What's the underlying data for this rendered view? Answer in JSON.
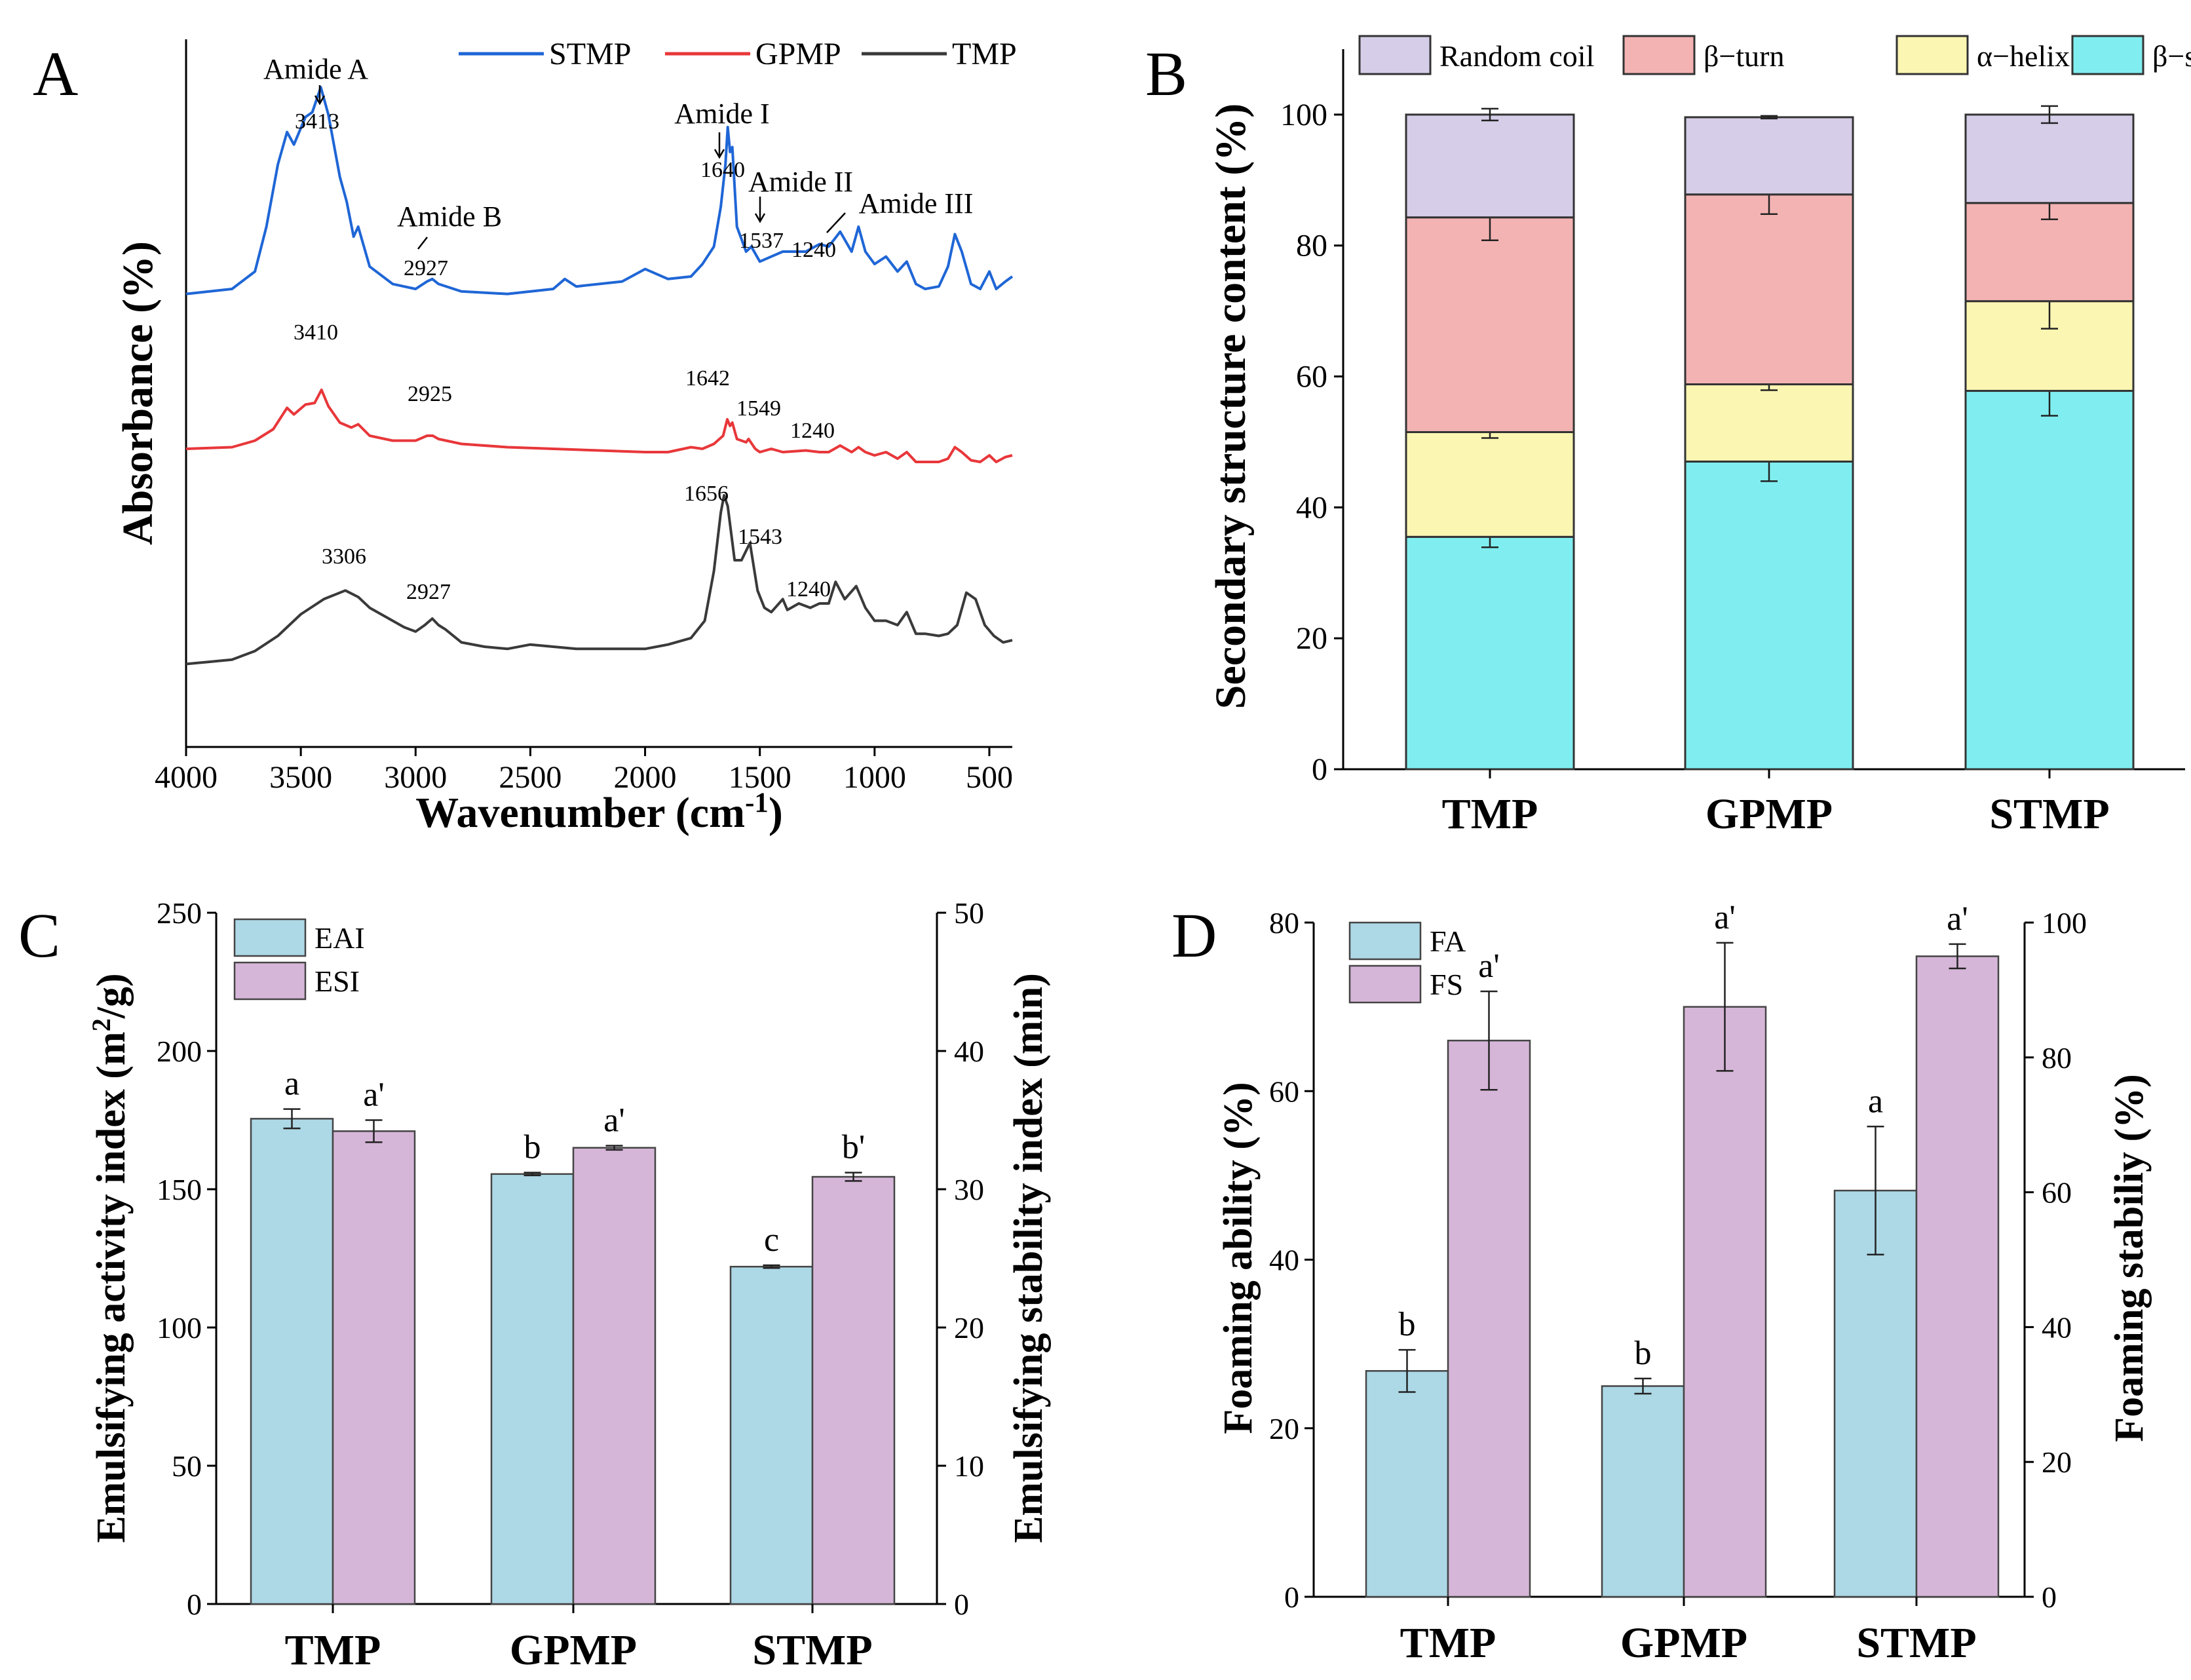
{
  "colors": {
    "stmp": "#1f66d6",
    "gpmp": "#e8373a",
    "tmp": "#3a3a3a",
    "random_coil": "#d6cde8",
    "beta_turn": "#f4b3b3",
    "alpha_helix": "#fbf6b2",
    "beta_sheet": "#80eef0",
    "eai": "#add8e6",
    "esi": "#d6b6d8",
    "fa": "#add8e6",
    "fs": "#d6b6d8"
  },
  "chart_data": [
    {
      "panel": "A",
      "type": "line",
      "xlabel": "Wavenumber (cm",
      "xlabel_sup": "-1",
      "xlabel_close": ")",
      "ylabel": "Absorbance (%)",
      "xlim": [
        4000,
        400
      ],
      "xticks": [
        "4000",
        "3500",
        "3000",
        "2500",
        "2000",
        "1500",
        "1000",
        "500"
      ],
      "legend": [
        "STMP",
        "GPMP",
        "TMP"
      ],
      "series": [
        {
          "name": "STMP",
          "points": [
            [
              4000,
              0.03
            ],
            [
              3800,
              0.05
            ],
            [
              3700,
              0.12
            ],
            [
              3650,
              0.3
            ],
            [
              3600,
              0.55
            ],
            [
              3560,
              0.68
            ],
            [
              3530,
              0.63
            ],
            [
              3480,
              0.74
            ],
            [
              3450,
              0.76
            ],
            [
              3413,
              0.86
            ],
            [
              3380,
              0.75
            ],
            [
              3330,
              0.5
            ],
            [
              3300,
              0.4
            ],
            [
              3270,
              0.26
            ],
            [
              3250,
              0.3
            ],
            [
              3200,
              0.14
            ],
            [
              3100,
              0.07
            ],
            [
              3000,
              0.05
            ],
            [
              2950,
              0.08
            ],
            [
              2927,
              0.09
            ],
            [
              2900,
              0.07
            ],
            [
              2800,
              0.04
            ],
            [
              2600,
              0.03
            ],
            [
              2400,
              0.05
            ],
            [
              2350,
              0.09
            ],
            [
              2300,
              0.06
            ],
            [
              2100,
              0.08
            ],
            [
              2000,
              0.13
            ],
            [
              1900,
              0.09
            ],
            [
              1800,
              0.1
            ],
            [
              1750,
              0.15
            ],
            [
              1700,
              0.22
            ],
            [
              1670,
              0.38
            ],
            [
              1650,
              0.55
            ],
            [
              1640,
              0.7
            ],
            [
              1630,
              0.6
            ],
            [
              1620,
              0.62
            ],
            [
              1600,
              0.3
            ],
            [
              1560,
              0.2
            ],
            [
              1537,
              0.22
            ],
            [
              1500,
              0.16
            ],
            [
              1450,
              0.18
            ],
            [
              1400,
              0.2
            ],
            [
              1300,
              0.2
            ],
            [
              1240,
              0.23
            ],
            [
              1200,
              0.22
            ],
            [
              1150,
              0.28
            ],
            [
              1100,
              0.2
            ],
            [
              1070,
              0.3
            ],
            [
              1040,
              0.2
            ],
            [
              1000,
              0.15
            ],
            [
              950,
              0.18
            ],
            [
              900,
              0.12
            ],
            [
              860,
              0.16
            ],
            [
              820,
              0.07
            ],
            [
              780,
              0.05
            ],
            [
              720,
              0.06
            ],
            [
              680,
              0.14
            ],
            [
              650,
              0.27
            ],
            [
              620,
              0.2
            ],
            [
              580,
              0.07
            ],
            [
              540,
              0.05
            ],
            [
              500,
              0.12
            ],
            [
              470,
              0.05
            ],
            [
              430,
              0.08
            ],
            [
              400,
              0.1
            ]
          ]
        },
        {
          "name": "GPMP",
          "points": [
            [
              4000,
              0.02
            ],
            [
              3800,
              0.03
            ],
            [
              3700,
              0.07
            ],
            [
              3620,
              0.14
            ],
            [
              3560,
              0.27
            ],
            [
              3530,
              0.23
            ],
            [
              3480,
              0.29
            ],
            [
              3440,
              0.3
            ],
            [
              3410,
              0.38
            ],
            [
              3380,
              0.28
            ],
            [
              3330,
              0.18
            ],
            [
              3280,
              0.15
            ],
            [
              3250,
              0.17
            ],
            [
              3200,
              0.1
            ],
            [
              3100,
              0.07
            ],
            [
              3000,
              0.07
            ],
            [
              2950,
              0.1
            ],
            [
              2925,
              0.1
            ],
            [
              2900,
              0.08
            ],
            [
              2800,
              0.05
            ],
            [
              2600,
              0.03
            ],
            [
              2400,
              0.02
            ],
            [
              2200,
              0.01
            ],
            [
              2000,
              0.0
            ],
            [
              1900,
              0.0
            ],
            [
              1800,
              0.03
            ],
            [
              1750,
              0.02
            ],
            [
              1700,
              0.05
            ],
            [
              1660,
              0.1
            ],
            [
              1642,
              0.2
            ],
            [
              1630,
              0.16
            ],
            [
              1620,
              0.18
            ],
            [
              1600,
              0.08
            ],
            [
              1560,
              0.06
            ],
            [
              1549,
              0.08
            ],
            [
              1520,
              0.02
            ],
            [
              1500,
              0.0
            ],
            [
              1450,
              0.02
            ],
            [
              1400,
              0.0
            ],
            [
              1300,
              0.01
            ],
            [
              1240,
              0.0
            ],
            [
              1200,
              0.0
            ],
            [
              1150,
              0.04
            ],
            [
              1100,
              0.0
            ],
            [
              1070,
              0.03
            ],
            [
              1040,
              0.0
            ],
            [
              1000,
              -0.02
            ],
            [
              950,
              0.0
            ],
            [
              900,
              -0.04
            ],
            [
              860,
              0.0
            ],
            [
              820,
              -0.06
            ],
            [
              780,
              -0.06
            ],
            [
              720,
              -0.06
            ],
            [
              680,
              -0.04
            ],
            [
              650,
              0.03
            ],
            [
              620,
              0.0
            ],
            [
              580,
              -0.05
            ],
            [
              540,
              -0.06
            ],
            [
              500,
              -0.02
            ],
            [
              470,
              -0.06
            ],
            [
              430,
              -0.03
            ],
            [
              400,
              -0.02
            ]
          ]
        },
        {
          "name": "TMP",
          "points": [
            [
              4000,
              0.02
            ],
            [
              3900,
              0.03
            ],
            [
              3800,
              0.04
            ],
            [
              3700,
              0.08
            ],
            [
              3600,
              0.15
            ],
            [
              3500,
              0.25
            ],
            [
              3400,
              0.32
            ],
            [
              3306,
              0.36
            ],
            [
              3250,
              0.33
            ],
            [
              3200,
              0.28
            ],
            [
              3100,
              0.22
            ],
            [
              3050,
              0.19
            ],
            [
              3000,
              0.17
            ],
            [
              2960,
              0.2
            ],
            [
              2927,
              0.23
            ],
            [
              2900,
              0.2
            ],
            [
              2870,
              0.18
            ],
            [
              2800,
              0.12
            ],
            [
              2700,
              0.1
            ],
            [
              2600,
              0.09
            ],
            [
              2500,
              0.11
            ],
            [
              2400,
              0.1
            ],
            [
              2300,
              0.09
            ],
            [
              2200,
              0.09
            ],
            [
              2100,
              0.09
            ],
            [
              2000,
              0.09
            ],
            [
              1900,
              0.11
            ],
            [
              1800,
              0.14
            ],
            [
              1740,
              0.22
            ],
            [
              1700,
              0.45
            ],
            [
              1670,
              0.72
            ],
            [
              1656,
              0.8
            ],
            [
              1640,
              0.75
            ],
            [
              1610,
              0.5
            ],
            [
              1580,
              0.5
            ],
            [
              1543,
              0.58
            ],
            [
              1510,
              0.36
            ],
            [
              1480,
              0.28
            ],
            [
              1450,
              0.26
            ],
            [
              1400,
              0.32
            ],
            [
              1380,
              0.27
            ],
            [
              1330,
              0.3
            ],
            [
              1280,
              0.28
            ],
            [
              1240,
              0.3
            ],
            [
              1200,
              0.3
            ],
            [
              1170,
              0.4
            ],
            [
              1130,
              0.32
            ],
            [
              1080,
              0.38
            ],
            [
              1040,
              0.28
            ],
            [
              1000,
              0.22
            ],
            [
              950,
              0.22
            ],
            [
              900,
              0.2
            ],
            [
              860,
              0.26
            ],
            [
              820,
              0.16
            ],
            [
              780,
              0.16
            ],
            [
              720,
              0.15
            ],
            [
              680,
              0.16
            ],
            [
              640,
              0.2
            ],
            [
              600,
              0.35
            ],
            [
              560,
              0.32
            ],
            [
              520,
              0.2
            ],
            [
              480,
              0.15
            ],
            [
              440,
              0.12
            ],
            [
              400,
              0.13
            ]
          ]
        }
      ],
      "annotations": {
        "stmp": [
          {
            "label": "Amide A",
            "value": "3413"
          },
          {
            "label": "Amide B",
            "value": "2927"
          },
          {
            "label": "Amide I",
            "value": "1640"
          },
          {
            "label": "Amide II",
            "value": "1537"
          },
          {
            "label": "Amide III",
            "value": "1240"
          }
        ],
        "gpmp": [
          "3410",
          "2925",
          "1642",
          "1549",
          "1240"
        ],
        "tmp": [
          "3306",
          "2927",
          "1656",
          "1543",
          "1240"
        ]
      },
      "panel_label": "A"
    },
    {
      "panel": "B",
      "type": "bar",
      "stacked": true,
      "categories": [
        "TMP",
        "GPMP",
        "STMP"
      ],
      "ylabel": "Secondary structure content (%)",
      "ylim": [
        0,
        110
      ],
      "yticks": [
        "0",
        "20",
        "40",
        "60",
        "80",
        "100"
      ],
      "legend": [
        "Random coil",
        "β−turn",
        "α−helix",
        "β−sheet"
      ],
      "series": [
        {
          "name": "β−sheet",
          "values": [
            35.5,
            47.0,
            57.8
          ],
          "errors": [
            1.6,
            3.0,
            3.8
          ]
        },
        {
          "name": "α−helix",
          "values": [
            16.0,
            11.8,
            13.7
          ],
          "errors": [
            0.9,
            0.9,
            4.2
          ]
        },
        {
          "name": "β−turn",
          "values": [
            32.8,
            29.0,
            15.0
          ],
          "errors": [
            3.5,
            3.0,
            2.5
          ]
        },
        {
          "name": "Random coil",
          "values": [
            15.7,
            11.8,
            13.5
          ],
          "errors": [
            0.9,
            0.2,
            1.3
          ]
        }
      ],
      "panel_label": "B"
    },
    {
      "panel": "C",
      "type": "bar",
      "categories": [
        "TMP",
        "GPMP",
        "STMP"
      ],
      "ylabel_left": "Emulsifying activity index (m",
      "ylabel_left_sup": "2",
      "ylabel_left_close": "/g)",
      "ylabel_right": "Emulsifying stability index (min)",
      "ylim_left": [
        0,
        250
      ],
      "ylim_right": [
        0,
        50
      ],
      "yticks_left": [
        "0",
        "50",
        "100",
        "150",
        "200",
        "250"
      ],
      "yticks_right": [
        "0",
        "10",
        "20",
        "30",
        "40",
        "50"
      ],
      "legend": [
        "EAI",
        "ESI"
      ],
      "series": [
        {
          "name": "EAI",
          "axis": "left",
          "values": [
            175.5,
            155.5,
            122.0
          ],
          "errors": [
            3.5,
            0.5,
            0.5
          ],
          "letters": [
            "a",
            "b",
            "c"
          ]
        },
        {
          "name": "ESI",
          "axis": "right",
          "values": [
            34.2,
            33.0,
            30.9
          ],
          "errors": [
            0.8,
            0.15,
            0.3
          ],
          "letters": [
            "a'",
            "a'",
            "b'"
          ]
        }
      ],
      "panel_label": "C"
    },
    {
      "panel": "D",
      "type": "bar",
      "categories": [
        "TMP",
        "GPMP",
        "STMP"
      ],
      "ylabel_left": "Foaming ability (%)",
      "ylabel_right": "Foaming stabiliy (%)",
      "ylim_left": [
        0,
        80
      ],
      "ylim_right": [
        0,
        100
      ],
      "yticks_left": [
        "0",
        "20",
        "40",
        "60",
        "80"
      ],
      "yticks_right": [
        "0",
        "20",
        "40",
        "60",
        "80",
        "100"
      ],
      "legend": [
        "FA",
        "FS"
      ],
      "series": [
        {
          "name": "FA",
          "axis": "left",
          "values": [
            26.8,
            25.0,
            48.2
          ],
          "errors": [
            2.5,
            0.9,
            7.6
          ],
          "letters": [
            "b",
            "b",
            "a"
          ]
        },
        {
          "name": "FS",
          "axis": "right",
          "values": [
            82.5,
            87.5,
            95.0
          ],
          "errors": [
            7.3,
            9.5,
            1.8
          ],
          "letters": [
            "a'",
            "a'",
            "a'"
          ]
        }
      ],
      "panel_label": "D"
    }
  ]
}
